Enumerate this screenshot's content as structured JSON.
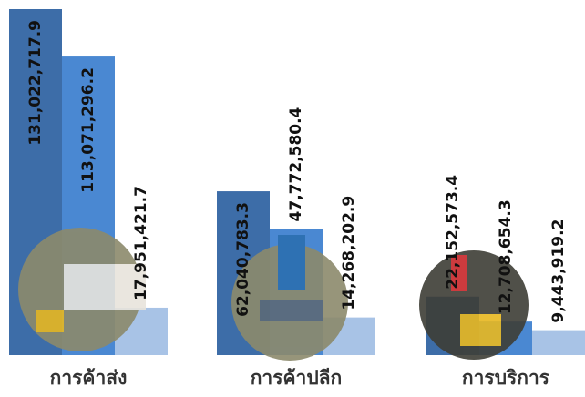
{
  "chart_data": {
    "type": "bar",
    "categories": [
      "การค้าส่ง",
      "การค้าปลีก",
      "การบริการ"
    ],
    "series": [
      {
        "color": "#3d6da8",
        "values": [
          131022717.9,
          62040783.3,
          22152573.4
        ],
        "value_labels": [
          "131,022,717.9",
          "62,040,783.3",
          "22,152,573.4"
        ]
      },
      {
        "color": "#4a88d2",
        "values": [
          113071296.2,
          47772580.4,
          12708654.3
        ],
        "value_labels": [
          "113,071,296.2",
          "47,772,580.4",
          "12,708,654.3"
        ]
      },
      {
        "color": "#a8c3e6",
        "values": [
          17951421.7,
          14268202.9,
          9443919.2
        ],
        "value_labels": [
          "17,951,421.7",
          "14,268,202.9",
          "9,443,919.2"
        ]
      }
    ]
  }
}
